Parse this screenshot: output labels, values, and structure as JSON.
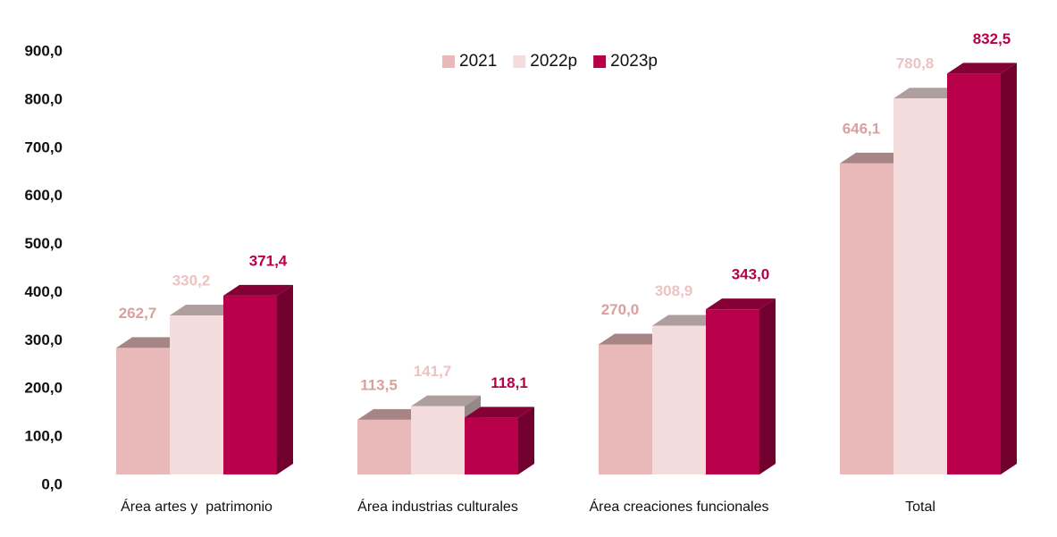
{
  "chart_data": {
    "type": "bar3d",
    "categories": [
      "Área artes y  patrimonio",
      "Área industrias culturales",
      "Área creaciones funcionales",
      "Total"
    ],
    "series": [
      {
        "name": "2021",
        "color": "#e8b9b8",
        "label_color": "#d9a09f",
        "values": [
          262.7,
          113.5,
          270.0,
          646.1
        ],
        "value_labels": [
          "262,7",
          "113,5",
          "270,0",
          "646,1"
        ]
      },
      {
        "name": "2022p",
        "color": "#f3dcdb",
        "label_color": "#ebc3c2",
        "values": [
          330.2,
          141.7,
          308.9,
          780.8
        ],
        "value_labels": [
          "330,2",
          "141,7",
          "308,9",
          "780,8"
        ]
      },
      {
        "name": "2023p",
        "color": "#b8004a",
        "label_color": "#b8004a",
        "values": [
          371.4,
          118.1,
          343.0,
          832.5
        ],
        "value_labels": [
          "371,4",
          "118,1",
          "343,0",
          "832,5"
        ]
      }
    ],
    "ylim": [
      0,
      900
    ],
    "yticks": [
      {
        "value": 0,
        "label": "0,0"
      },
      {
        "value": 100,
        "label": "100,0"
      },
      {
        "value": 200,
        "label": "200,0"
      },
      {
        "value": 300,
        "label": "300,0"
      },
      {
        "value": 400,
        "label": "400,0"
      },
      {
        "value": 500,
        "label": "500,0"
      },
      {
        "value": 600,
        "label": "600,0"
      },
      {
        "value": 700,
        "label": "700,0"
      },
      {
        "value": 800,
        "label": "800,0"
      },
      {
        "value": 900,
        "label": "900,0"
      }
    ],
    "legend": "top"
  }
}
